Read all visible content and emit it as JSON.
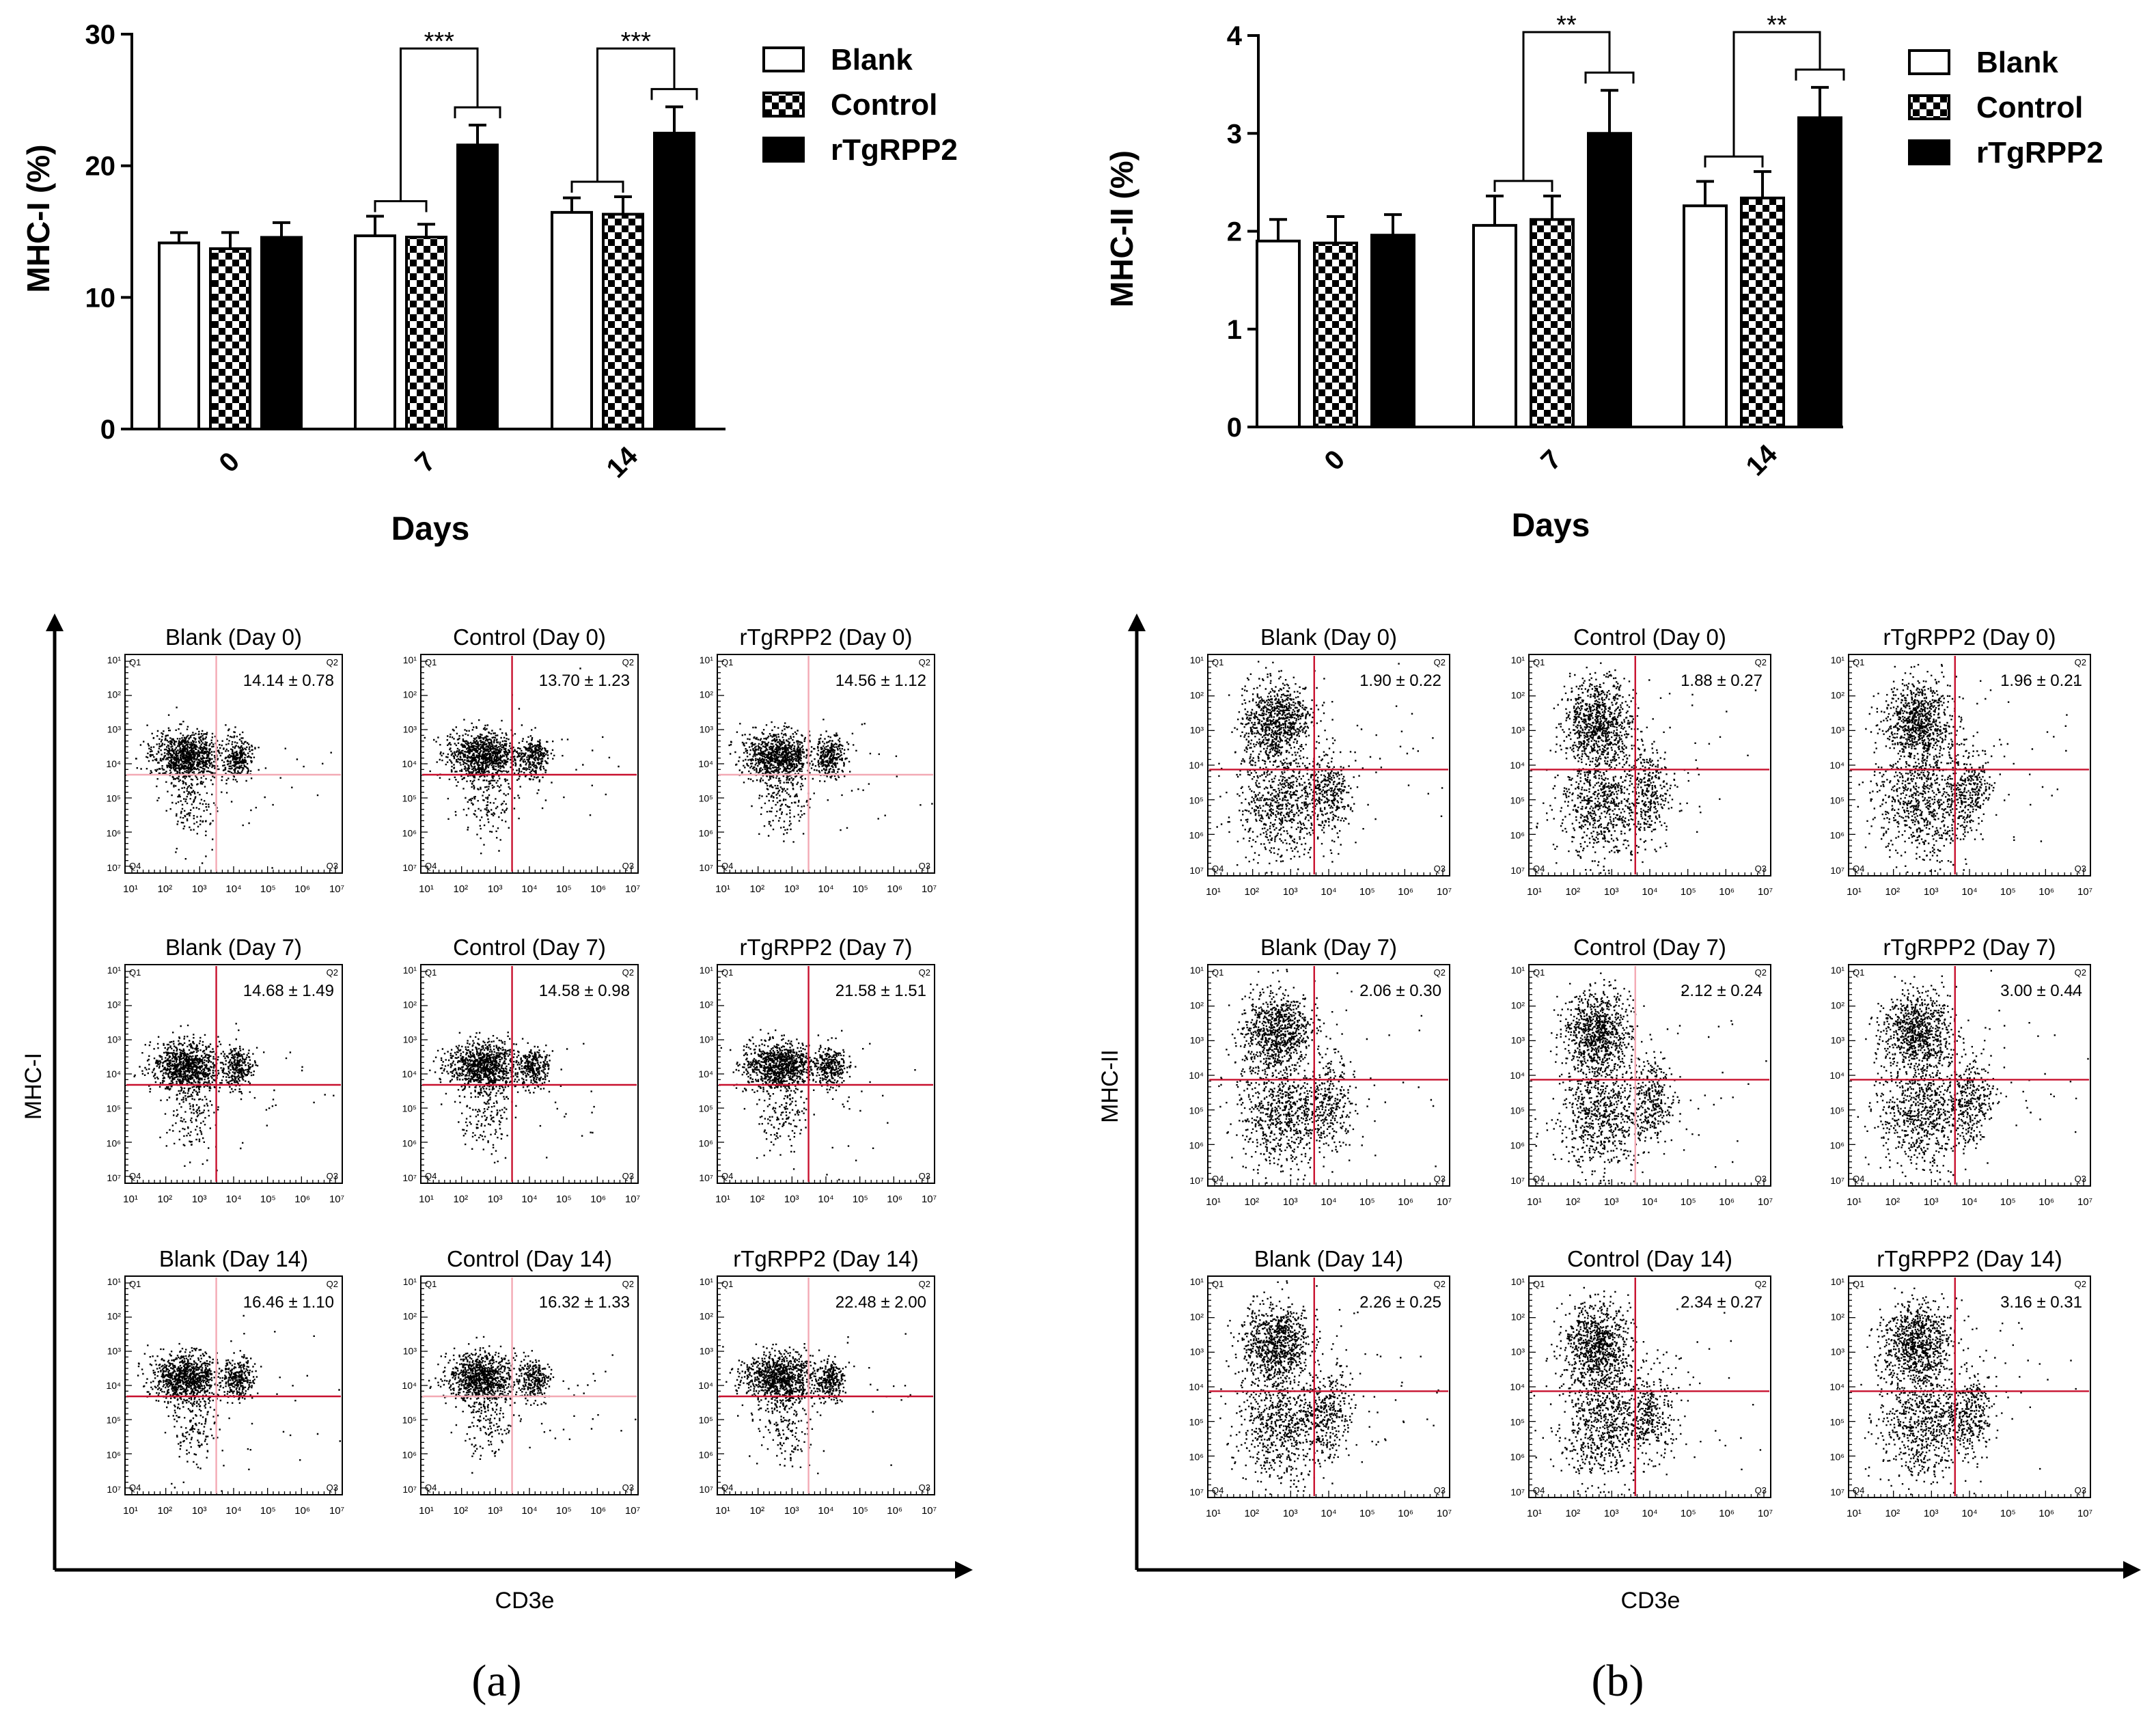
{
  "colors": {
    "ink": "#000000",
    "paper": "#ffffff",
    "gate_strong": "#c8102e",
    "gate_faint": "#f3a9b4"
  },
  "chart_data": [
    {
      "id": "a",
      "type": "bar",
      "panel_label": "(a)",
      "title": "",
      "xlabel": "Days",
      "ylabel": "MHC-I (%)",
      "categories": [
        "0",
        "7",
        "14"
      ],
      "ylim": [
        0,
        30
      ],
      "yticks": [
        0,
        10,
        20,
        30
      ],
      "legend_position": "top-right",
      "series": [
        {
          "name": "Blank",
          "pattern": "open",
          "values": [
            14.14,
            14.68,
            16.46
          ],
          "errors": [
            0.78,
            1.49,
            1.1
          ]
        },
        {
          "name": "Control",
          "pattern": "checker",
          "values": [
            13.7,
            14.58,
            16.32
          ],
          "errors": [
            1.23,
            0.98,
            1.33
          ]
        },
        {
          "name": "rTgRPP2",
          "pattern": "solid",
          "values": [
            14.56,
            21.58,
            22.48
          ],
          "errors": [
            1.12,
            1.51,
            2.0
          ]
        }
      ],
      "annotations": [
        {
          "category": "7",
          "label": "***",
          "compare": "rTgRPP2 vs Blank/Control"
        },
        {
          "category": "14",
          "label": "***",
          "compare": "rTgRPP2 vs Blank/Control"
        }
      ]
    },
    {
      "id": "b",
      "type": "bar",
      "panel_label": "(b)",
      "title": "",
      "xlabel": "Days",
      "ylabel": "MHC-II (%)",
      "categories": [
        "0",
        "7",
        "14"
      ],
      "ylim": [
        0,
        4
      ],
      "yticks": [
        0,
        1,
        2,
        3,
        4
      ],
      "legend_position": "top-right",
      "series": [
        {
          "name": "Blank",
          "pattern": "open",
          "values": [
            1.9,
            2.06,
            2.26
          ],
          "errors": [
            0.22,
            0.3,
            0.25
          ]
        },
        {
          "name": "Control",
          "pattern": "checker",
          "values": [
            1.88,
            2.12,
            2.34
          ],
          "errors": [
            0.27,
            0.24,
            0.27
          ]
        },
        {
          "name": "rTgRPP2",
          "pattern": "solid",
          "values": [
            1.96,
            3.0,
            3.16
          ],
          "errors": [
            0.21,
            0.44,
            0.31
          ]
        }
      ],
      "annotations": [
        {
          "category": "7",
          "label": "**",
          "compare": "rTgRPP2 vs Blank/Control"
        },
        {
          "category": "14",
          "label": "**",
          "compare": "rTgRPP2 vs Blank/Control"
        }
      ]
    },
    {
      "id": "a-flow",
      "type": "scatter",
      "xlabel": "CD3e",
      "ylabel": "MHC-I",
      "axis_tick_labels": [
        "10¹",
        "10²",
        "10³",
        "10⁴",
        "10⁵",
        "10⁶",
        "10⁷"
      ],
      "quadrant_labels": [
        "Q1",
        "Q2",
        "Q3",
        "Q4"
      ],
      "plots": [
        {
          "title": "Blank (Day 0)",
          "stat": "14.14 ± 0.78",
          "gate": "faint"
        },
        {
          "title": "Control (Day 0)",
          "stat": "13.70 ± 1.23",
          "gate": "strong"
        },
        {
          "title": "rTgRPP2 (Day 0)",
          "stat": "14.56 ± 1.12",
          "gate": "faint"
        },
        {
          "title": "Blank (Day 7)",
          "stat": "14.68 ± 1.49",
          "gate": "strong"
        },
        {
          "title": "Control (Day 7)",
          "stat": "14.58 ± 0.98",
          "gate": "strong"
        },
        {
          "title": "rTgRPP2 (Day 7)",
          "stat": "21.58 ± 1.51",
          "gate": "strong"
        },
        {
          "title": "Blank (Day 14)",
          "stat": "16.46 ± 1.10",
          "gate": "mixed"
        },
        {
          "title": "Control (Day 14)",
          "stat": "16.32 ± 1.33",
          "gate": "faint"
        },
        {
          "title": "rTgRPP2 (Day 14)",
          "stat": "22.48 ± 2.00",
          "gate": "mixed"
        }
      ]
    },
    {
      "id": "b-flow",
      "type": "scatter",
      "xlabel": "CD3e",
      "ylabel": "MHC-II",
      "axis_tick_labels": [
        "10¹",
        "10²",
        "10³",
        "10⁴",
        "10⁵",
        "10⁶",
        "10⁷"
      ],
      "quadrant_labels": [
        "Q1",
        "Q2",
        "Q3",
        "Q4"
      ],
      "plots": [
        {
          "title": "Blank (Day 0)",
          "stat": "1.90 ± 0.22",
          "gate": "strong"
        },
        {
          "title": "Control (Day 0)",
          "stat": "1.88 ± 0.27",
          "gate": "strong"
        },
        {
          "title": "rTgRPP2 (Day 0)",
          "stat": "1.96 ± 0.21",
          "gate": "strong"
        },
        {
          "title": "Blank (Day 7)",
          "stat": "2.06 ± 0.30",
          "gate": "strong"
        },
        {
          "title": "Control (Day 7)",
          "stat": "2.12 ± 0.24",
          "gate": "mixed"
        },
        {
          "title": "rTgRPP2 (Day 7)",
          "stat": "3.00 ± 0.44",
          "gate": "strong"
        },
        {
          "title": "Blank (Day 14)",
          "stat": "2.26 ± 0.25",
          "gate": "strong"
        },
        {
          "title": "Control (Day 14)",
          "stat": "2.34 ± 0.27",
          "gate": "strong"
        },
        {
          "title": "rTgRPP2 (Day 14)",
          "stat": "3.16 ± 0.31",
          "gate": "strong"
        }
      ]
    }
  ]
}
